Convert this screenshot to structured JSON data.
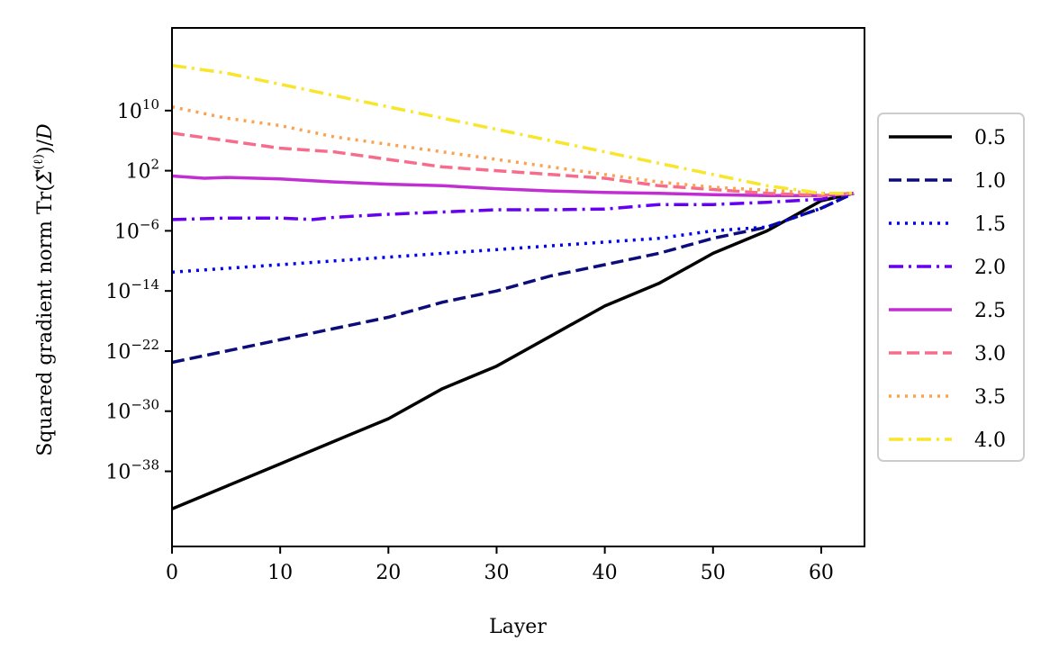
{
  "chart_data": {
    "type": "line",
    "xlabel": "Layer",
    "ylabel": "Squared gradient norm Tr(Σ̃(ℓ))/D",
    "yscale": "log",
    "xlim": [
      0,
      64
    ],
    "ylim_exp": [
      -48,
      21
    ],
    "grid": false,
    "legend_placement": "right-outside",
    "xticks": [
      0,
      10,
      20,
      30,
      40,
      50,
      60
    ],
    "xtick_labels": [
      "0",
      "10",
      "20",
      "30",
      "40",
      "50",
      "60"
    ],
    "yticks_exp": [
      10,
      2,
      -6,
      -14,
      -22,
      -30,
      -38
    ],
    "ytick_bases": [
      "10",
      "10",
      "10",
      "10",
      "10",
      "10",
      "10"
    ],
    "ytick_exponents": [
      "10",
      "2",
      "−6",
      "−14",
      "−22",
      "−30",
      "−38"
    ],
    "series": [
      {
        "name": "0.5",
        "color": "#000000",
        "dash": "solid",
        "x": [
          0,
          5,
          10,
          15,
          20,
          25,
          30,
          35,
          40,
          45,
          50,
          55,
          60,
          63
        ],
        "y_exp": [
          -43,
          -40,
          -37,
          -34,
          -31,
          -27,
          -24,
          -20,
          -16,
          -13,
          -9,
          -6,
          -2,
          -1
        ]
      },
      {
        "name": "1.0",
        "color": "#0c0c7a",
        "dash": "dashed",
        "x": [
          0,
          5,
          10,
          15,
          20,
          25,
          30,
          35,
          40,
          45,
          50,
          55,
          60,
          63
        ],
        "y_exp": [
          -23.5,
          -22,
          -20.5,
          -19,
          -17.5,
          -15.5,
          -14,
          -12,
          -10.5,
          -9,
          -7,
          -5.5,
          -3,
          -1
        ]
      },
      {
        "name": "1.5",
        "color": "#0000ee",
        "dash": "dotted",
        "x": [
          0,
          5,
          10,
          15,
          20,
          25,
          30,
          35,
          40,
          45,
          50,
          55,
          60,
          63
        ],
        "y_exp": [
          -11.5,
          -11,
          -10.5,
          -10,
          -9.5,
          -9,
          -8.5,
          -8,
          -7.5,
          -7,
          -6,
          -5.5,
          -3,
          -1
        ]
      },
      {
        "name": "2.0",
        "color": "#6500f0",
        "dash": "dashdot",
        "x": [
          0,
          5,
          10,
          13,
          15,
          20,
          25,
          30,
          35,
          40,
          45,
          50,
          55,
          60,
          63
        ],
        "y_exp": [
          -4.5,
          -4.3,
          -4.3,
          -4.5,
          -4.2,
          -3.8,
          -3.5,
          -3.2,
          -3.2,
          -3.1,
          -2.5,
          -2.5,
          -2.2,
          -1.8,
          -1
        ]
      },
      {
        "name": "2.5",
        "color": "#c12fd3",
        "dash": "solid",
        "x": [
          0,
          3,
          5,
          10,
          15,
          20,
          25,
          30,
          35,
          40,
          45,
          50,
          55,
          60,
          63
        ],
        "y_exp": [
          1.3,
          1.0,
          1.1,
          0.9,
          0.5,
          0.2,
          0,
          -0.4,
          -0.7,
          -0.9,
          -1.0,
          -1.2,
          -1.3,
          -1.3,
          -1
        ]
      },
      {
        "name": "3.0",
        "color": "#f76c8b",
        "dash": "dashed",
        "x": [
          0,
          5,
          10,
          15,
          20,
          25,
          30,
          35,
          40,
          45,
          50,
          55,
          60,
          63
        ],
        "y_exp": [
          7,
          6,
          5,
          4.5,
          3.5,
          2.5,
          2,
          1.5,
          1,
          0,
          -0.5,
          -1,
          -1.3,
          -1
        ]
      },
      {
        "name": "3.5",
        "color": "#fba24f",
        "dash": "dotted",
        "x": [
          0,
          5,
          10,
          15,
          20,
          25,
          30,
          35,
          40,
          45,
          50,
          55,
          60,
          63
        ],
        "y_exp": [
          10.5,
          9,
          8,
          6.5,
          5.5,
          4.5,
          3.5,
          2.5,
          1.5,
          0.5,
          -0.2,
          -0.6,
          -1,
          -1
        ]
      },
      {
        "name": "4.0",
        "color": "#f7e62c",
        "dash": "dashdot",
        "x": [
          0,
          5,
          10,
          15,
          20,
          25,
          30,
          35,
          40,
          45,
          50,
          55,
          60,
          63
        ],
        "y_exp": [
          16,
          15,
          13.5,
          12,
          10.5,
          9,
          7.5,
          6,
          4.5,
          3,
          1.5,
          0,
          -1,
          -1
        ]
      }
    ]
  }
}
